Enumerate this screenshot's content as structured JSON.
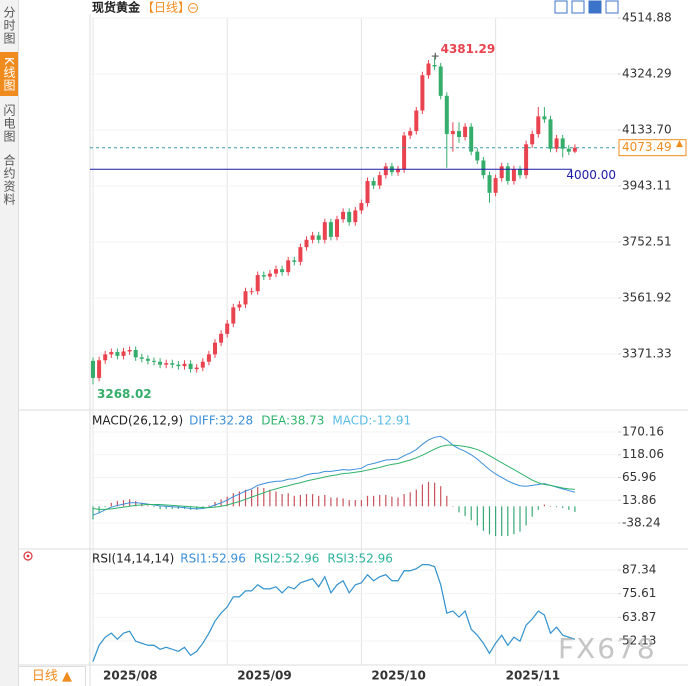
{
  "sidebar": {
    "tabs": [
      "分时图",
      "K线图",
      "闪电图",
      "合约资料"
    ]
  },
  "header": {
    "title": "现货黄金",
    "period": "【日线】"
  },
  "footer": {
    "period_button": "日线 ▲"
  },
  "watermark": "FX678",
  "chart_data": [
    {
      "type": "candlestick",
      "categories": [
        "2025/08",
        null,
        null,
        null,
        null,
        null,
        null,
        null,
        null,
        null,
        null,
        null,
        null,
        null,
        null,
        null,
        null,
        null,
        null,
        null,
        null,
        null,
        "2025/09",
        null,
        null,
        null,
        null,
        null,
        null,
        null,
        null,
        null,
        null,
        null,
        null,
        null,
        null,
        null,
        null,
        null,
        null,
        null,
        null,
        null,
        "2025/10",
        null,
        null,
        null,
        null,
        null,
        null,
        null,
        null,
        null,
        null,
        null,
        null,
        null,
        null,
        null,
        null,
        null,
        null,
        null,
        null,
        null,
        "2025/11",
        null,
        null,
        null,
        null,
        null,
        null,
        null,
        null,
        null,
        null,
        null,
        null,
        null
      ],
      "open": [
        3348,
        3290,
        3350,
        3370,
        3378,
        3365,
        3380,
        3385,
        3360,
        3355,
        3348,
        3345,
        3335,
        3340,
        3335,
        3330,
        3338,
        3320,
        3325,
        3345,
        3370,
        3410,
        3440,
        3475,
        3530,
        3540,
        3585,
        3585,
        3640,
        3635,
        3645,
        3660,
        3650,
        3690,
        3685,
        3735,
        3760,
        3775,
        3760,
        3820,
        3770,
        3830,
        3855,
        3820,
        3860,
        3885,
        3960,
        3945,
        3980,
        4010,
        3990,
        4000,
        4115,
        4130,
        4200,
        4320,
        4355,
        4350,
        4250,
        4120,
        4130,
        4110,
        4145,
        4060,
        4030,
        3980,
        3920,
        3970,
        4010,
        3960,
        4000,
        3980,
        4085,
        4120,
        4180,
        4170,
        4070,
        4105,
        4070,
        4060
      ],
      "high": [
        3360,
        3362,
        3382,
        3390,
        3390,
        3392,
        3397,
        3397,
        3372,
        3367,
        3360,
        3357,
        3352,
        3352,
        3347,
        3350,
        3350,
        3337,
        3357,
        3382,
        3422,
        3452,
        3487,
        3542,
        3552,
        3597,
        3597,
        3652,
        3652,
        3657,
        3672,
        3672,
        3702,
        3702,
        3747,
        3772,
        3787,
        3787,
        3832,
        3832,
        3842,
        3867,
        3867,
        3872,
        3897,
        3972,
        3972,
        3992,
        4022,
        4022,
        4012,
        4127,
        4142,
        4212,
        4332,
        4372,
        4381.29,
        4362,
        4262,
        4160,
        4160,
        4157,
        4157,
        4072,
        4042,
        3992,
        3982,
        4022,
        4022,
        4012,
        4012,
        4097,
        4132,
        4212,
        4212,
        4182,
        4117,
        4117,
        4082,
        4085
      ],
      "low": [
        3268.02,
        3278,
        3338,
        3358,
        3353,
        3353,
        3368,
        3348,
        3343,
        3336,
        3333,
        3323,
        3323,
        3323,
        3318,
        3318,
        3308,
        3308,
        3313,
        3333,
        3358,
        3398,
        3428,
        3463,
        3518,
        3528,
        3573,
        3573,
        3623,
        3623,
        3633,
        3638,
        3638,
        3673,
        3673,
        3723,
        3748,
        3748,
        3748,
        3758,
        3758,
        3818,
        3808,
        3808,
        3848,
        3873,
        3933,
        3933,
        3968,
        3978,
        3978,
        3988,
        4103,
        4118,
        4188,
        4308,
        4338,
        4238,
        4005,
        4060,
        4090,
        4098,
        4048,
        4018,
        3968,
        3886,
        3908,
        3958,
        3948,
        3948,
        3968,
        3968,
        4073,
        4108,
        4158,
        4058,
        4058,
        4040,
        4048,
        4055
      ],
      "close": [
        3290,
        3350,
        3370,
        3378,
        3365,
        3380,
        3385,
        3360,
        3355,
        3348,
        3345,
        3335,
        3340,
        3335,
        3330,
        3338,
        3320,
        3325,
        3345,
        3370,
        3410,
        3440,
        3475,
        3530,
        3540,
        3585,
        3585,
        3640,
        3635,
        3645,
        3660,
        3650,
        3690,
        3685,
        3735,
        3760,
        3775,
        3760,
        3820,
        3770,
        3830,
        3855,
        3820,
        3860,
        3885,
        3960,
        3945,
        3980,
        4010,
        3990,
        4000,
        4115,
        4130,
        4200,
        4320,
        4360,
        4350,
        4250,
        4120,
        4130,
        4110,
        4145,
        4060,
        4030,
        3980,
        3920,
        3970,
        4010,
        3960,
        4000,
        3980,
        4085,
        4120,
        4180,
        4170,
        4070,
        4105,
        4070,
        4060,
        4073.49
      ],
      "up_color": "#e8434f",
      "down_color": "#35ad6b",
      "ylim": [
        3187.54,
        4514.88
      ],
      "yticks": [
        4514.88,
        4324.29,
        {
          "value": 4133.7,
          "label": "4133.70"
        },
        3943.11,
        3752.51,
        3561.92,
        3371.33
      ],
      "reference_line": {
        "value": 4000,
        "label": "4000.00",
        "color": "#1a1aa8"
      },
      "grid": true
    },
    {
      "type": "macd",
      "title": "MACD(26,12,9)",
      "series": [
        {
          "name": "DIFF:32.28",
          "color": "#3b8fd9",
          "values": [
            -20,
            -15,
            -8,
            -2,
            2,
            5,
            8,
            8,
            7,
            5,
            3,
            1,
            0,
            -1,
            -2,
            -3,
            -5,
            -6,
            -5,
            -2,
            3,
            8,
            14,
            22,
            28,
            35,
            40,
            48,
            52,
            55,
            57,
            58,
            62,
            63,
            67,
            72,
            75,
            76,
            80,
            80,
            82,
            84,
            83,
            85,
            87,
            95,
            98,
            102,
            106,
            107,
            108,
            116,
            122,
            130,
            142,
            152,
            158,
            160,
            152,
            140,
            132,
            126,
            118,
            108,
            96,
            84,
            74,
            66,
            58,
            52,
            47,
            46,
            48,
            50,
            52,
            48,
            44,
            40,
            36,
            32.28
          ]
        },
        {
          "name": "DEA:38.73",
          "color": "#2fb36a",
          "values": [
            -5,
            -7,
            -7,
            -6,
            -4,
            -2,
            0,
            2,
            3,
            4,
            4,
            4,
            3,
            2,
            1,
            0,
            -1,
            -2,
            -3,
            -3,
            -2,
            0,
            3,
            7,
            11,
            16,
            21,
            26,
            31,
            36,
            40,
            44,
            47,
            51,
            54,
            58,
            61,
            64,
            67,
            70,
            72,
            75,
            76,
            78,
            80,
            83,
            86,
            89,
            93,
            96,
            98,
            102,
            106,
            111,
            117,
            124,
            131,
            137,
            140,
            140,
            139,
            137,
            134,
            130,
            124,
            116,
            108,
            100,
            92,
            84,
            76,
            68,
            60,
            54,
            50,
            48,
            45,
            42,
            40,
            38.73
          ]
        },
        {
          "name": "MACD:-12.91",
          "color": "#5bbde6",
          "bar": true,
          "values": [
            -30,
            -16,
            -2,
            8,
            12,
            14,
            16,
            12,
            8,
            2,
            -2,
            -6,
            -6,
            -6,
            -6,
            -6,
            -8,
            -8,
            -4,
            2,
            10,
            16,
            22,
            30,
            34,
            38,
            38,
            44,
            42,
            38,
            34,
            28,
            30,
            24,
            26,
            28,
            28,
            24,
            26,
            20,
            20,
            18,
            14,
            14,
            14,
            24,
            24,
            26,
            26,
            22,
            20,
            28,
            32,
            38,
            50,
            56,
            54,
            46,
            24,
            0,
            -14,
            -22,
            -32,
            -44,
            -56,
            -64,
            -68,
            -68,
            -68,
            -64,
            -58,
            -44,
            -24,
            -8,
            4,
            0,
            -2,
            -4,
            -8,
            -12.91
          ]
        }
      ],
      "up_color": "#c9535c",
      "down_color": "#3aa877",
      "ylim": [
        -95.49,
        215.96
      ],
      "yticks": [
        170.16,
        118.06,
        65.96,
        13.86,
        -38.24
      ],
      "grid": true
    },
    {
      "type": "line",
      "title": "RSI(14,14,14)",
      "series": [
        {
          "name": "RSI1:52.96",
          "color": "#3b8fd9",
          "values": [
            42,
            50,
            54,
            56,
            53,
            56,
            57,
            52,
            51,
            50,
            50,
            48,
            49,
            48,
            47,
            49,
            45,
            47,
            51,
            56,
            62,
            66,
            69,
            74,
            74,
            77,
            77,
            80,
            78,
            78,
            79,
            76,
            79,
            78,
            81,
            82,
            83,
            79,
            84,
            76,
            80,
            82,
            76,
            80,
            81,
            85,
            82,
            84,
            85,
            82,
            82,
            87,
            87,
            88,
            90,
            90,
            89,
            80,
            66,
            67,
            64,
            67,
            58,
            55,
            51,
            46,
            51,
            55,
            50,
            54,
            52,
            60,
            63,
            67,
            65,
            56,
            59,
            55,
            54,
            52.96
          ]
        },
        {
          "name": "RSI2:52.96",
          "color": "#2bb39b",
          "values": [
            42,
            50,
            54,
            56,
            53,
            56,
            57,
            52,
            51,
            50,
            50,
            48,
            49,
            48,
            47,
            49,
            45,
            47,
            51,
            56,
            62,
            66,
            69,
            74,
            74,
            77,
            77,
            80,
            78,
            78,
            79,
            76,
            79,
            78,
            81,
            82,
            83,
            79,
            84,
            76,
            80,
            82,
            76,
            80,
            81,
            85,
            82,
            84,
            85,
            82,
            82,
            87,
            87,
            88,
            90,
            90,
            89,
            80,
            66,
            67,
            64,
            67,
            58,
            55,
            51,
            46,
            51,
            55,
            50,
            54,
            52,
            60,
            63,
            67,
            65,
            56,
            59,
            55,
            54,
            52.96
          ]
        },
        {
          "name": "RSI3:52.96",
          "color": "#2bb39b",
          "values": [
            42,
            50,
            54,
            56,
            53,
            56,
            57,
            52,
            51,
            50,
            50,
            48,
            49,
            48,
            47,
            49,
            45,
            47,
            51,
            56,
            62,
            66,
            69,
            74,
            74,
            77,
            77,
            80,
            78,
            78,
            79,
            76,
            79,
            78,
            81,
            82,
            83,
            79,
            84,
            76,
            80,
            82,
            76,
            80,
            81,
            85,
            82,
            84,
            85,
            82,
            82,
            87,
            87,
            88,
            90,
            90,
            89,
            80,
            66,
            67,
            64,
            67,
            58,
            55,
            51,
            46,
            51,
            55,
            50,
            54,
            52,
            60,
            63,
            67,
            65,
            56,
            59,
            55,
            54,
            52.96
          ]
        }
      ],
      "ylim": [
        40.23,
        97.26
      ],
      "yticks": [
        87.34,
        75.61,
        63.87,
        52.13
      ],
      "grid": true
    }
  ]
}
